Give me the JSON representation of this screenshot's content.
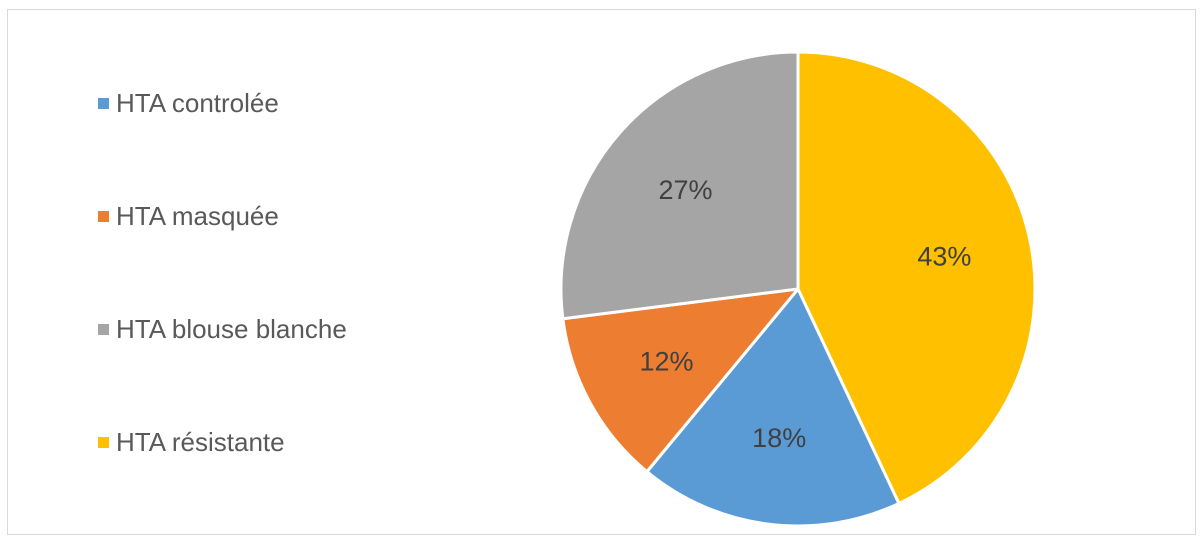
{
  "chart_data": {
    "type": "pie",
    "title": "",
    "legend_position": "left",
    "start_angle_deg": 0,
    "direction": "clockwise",
    "slices": [
      {
        "label": "HTA résistante",
        "value": 43,
        "display": "43%",
        "color": "#FFC000"
      },
      {
        "label": "HTA controlée",
        "value": 18,
        "display": "18%",
        "color": "#5B9BD5"
      },
      {
        "label": "HTA masquée",
        "value": 12,
        "display": "12%",
        "color": "#ED7D31"
      },
      {
        "label": "HTA blouse blanche",
        "value": 27,
        "display": "27%",
        "color": "#A5A5A5"
      }
    ],
    "legend": [
      {
        "label": "HTA controlée",
        "color": "#5B9BD5"
      },
      {
        "label": "HTA masquée",
        "color": "#ED7D31"
      },
      {
        "label": "HTA blouse blanche",
        "color": "#A5A5A5"
      },
      {
        "label": "HTA résistante",
        "color": "#FFC000"
      }
    ],
    "data_label_color": "#404040",
    "slice_border_color": "#FFFFFF"
  }
}
